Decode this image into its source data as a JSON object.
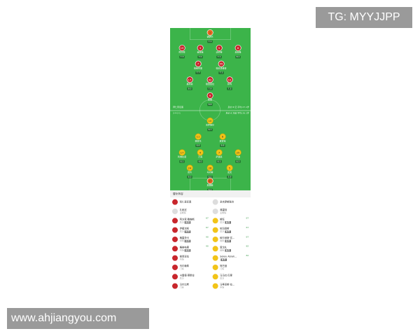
{
  "watermarks": {
    "tg": "TG: MYYJJPP",
    "site": "www.ahjiangyou.com"
  },
  "pitch": {
    "home_info_left": "拜仁慕尼黑",
    "home_info_right": "身价:€ 亿  平均:27.1岁",
    "away_info_left": "3-4-2-1",
    "away_info_right": "身价:€ 万欧  平均:26.1岁",
    "home": [
      {
        "name": "诺伊尔",
        "rating": "7.1",
        "kit": "gk",
        "num": "1"
      },
      {
        "name": "阿方索",
        "rating": "7.3",
        "kit": "red",
        "num": "19"
      },
      {
        "name": "金玟哉",
        "rating": "7.0",
        "kit": "red",
        "num": "3"
      },
      {
        "name": "达约特",
        "rating": "7.1",
        "kit": "red",
        "num": "5"
      },
      {
        "name": "基米希",
        "rating": "8.1",
        "kit": "red",
        "num": "6"
      },
      {
        "name": "格纳布里",
        "rating": "7.7",
        "kit": "red",
        "num": "7"
      },
      {
        "name": "帕夫洛维奇",
        "rating": "7.1",
        "kit": "red",
        "num": "45"
      },
      {
        "name": "奥利塞",
        "rating": "8.0",
        "kit": "red",
        "num": "17"
      },
      {
        "name": "穆西亚拉",
        "rating": "7.8",
        "kit": "red",
        "num": "42"
      },
      {
        "name": "萨内",
        "rating": "7.3",
        "kit": "red",
        "num": "10"
      },
      {
        "name": "凯恩",
        "rating": "8.8",
        "kit": "red",
        "num": "9"
      }
    ],
    "away": [
      {
        "name": "普罗梅尔",
        "rating": "6.7",
        "kit": "yel",
        "num": "10"
      },
      {
        "name": "格雷戈",
        "rating": "6.6",
        "kit": "yel",
        "num": "11"
      },
      {
        "name": "莫雷拉",
        "rating": "6.6",
        "kit": "yel",
        "num": "8"
      },
      {
        "name": "利维拉诺",
        "rating": "6.1",
        "kit": "yel",
        "num": "17"
      },
      {
        "name": "万海",
        "rating": "6.0",
        "kit": "yel",
        "num": "4"
      },
      {
        "name": "萨迪基",
        "rating": "6.1",
        "kit": "yel",
        "num": "7"
      },
      {
        "name": "卡迪",
        "rating": "6.2",
        "kit": "yel",
        "num": "25"
      },
      {
        "name": "德肯",
        "rating": "6.0",
        "kit": "yel",
        "num": "24"
      },
      {
        "name": "马切蒂",
        "rating": "6.0",
        "kit": "yel",
        "num": "26"
      },
      {
        "name": "麦克",
        "rating": "5.9",
        "kit": "yel",
        "num": "5"
      },
      {
        "name": "莫里斯",
        "rating": "6.2",
        "kit": "gk",
        "num": "37"
      }
    ]
  },
  "subs": {
    "title": "替补阵容",
    "teams": [
      "拜仁慕尼黑",
      "圣吉罗斯联合"
    ],
    "coaches": [
      {
        "name": "孔帕尼",
        "role": "主教练"
      },
      {
        "name": "弗雷特",
        "role": "主教练"
      }
    ],
    "rows": [
      [
        {
          "name": "阿方索·戴维斯",
          "pos": "后卫",
          "tag": "首发",
          "min": "67"
        },
        {
          "name": "斯旺",
          "pos": "后卫",
          "tag": "首发",
          "min": "67"
        }
      ],
      [
        {
          "name": "伊藤洋辉",
          "pos": "后卫",
          "tag": "首发",
          "min": "67"
        },
        {
          "name": "帕玛恩斯",
          "pos": "后卫",
          "tag": "首发",
          "min": "67"
        }
      ],
      [
        {
          "name": "格雷茨卡",
          "pos": "中场",
          "tag": "首发",
          "min": "90"
        },
        {
          "name": "穆尔曼斯·富...",
          "pos": "前锋",
          "tag": "首发",
          "min": "67"
        }
      ],
      [
        {
          "name": "格纳布里",
          "pos": "中场",
          "tag": "首发",
          "min": "90"
        },
        {
          "name": "恩戈扎",
          "pos": "前锋",
          "tag": "首发",
          "min": "82"
        }
      ],
      [
        {
          "name": "穆西亚拉",
          "pos": "中场",
          "tag": "",
          "min": ""
        },
        {
          "name": "Sekou Abrah...",
          "pos": "",
          "tag": "首发",
          "min": "82"
        }
      ],
      [
        {
          "name": "乌尔赖希",
          "pos": "门将",
          "tag": "",
          "min": ""
        },
        {
          "name": "阿巴迪",
          "pos": "门将",
          "tag": "",
          "min": ""
        }
      ],
      [
        {
          "name": "卡雷德·莱默拉",
          "pos": "后卫",
          "tag": "",
          "min": ""
        },
        {
          "name": "马马杜·巴里",
          "pos": "后卫",
          "tag": "",
          "min": ""
        }
      ],
      [
        {
          "name": "乌尔比希",
          "pos": "门将",
          "tag": "",
          "min": ""
        },
        {
          "name": "马蒂亚斯·拉...",
          "pos": "中场",
          "tag": "",
          "min": ""
        }
      ]
    ]
  }
}
